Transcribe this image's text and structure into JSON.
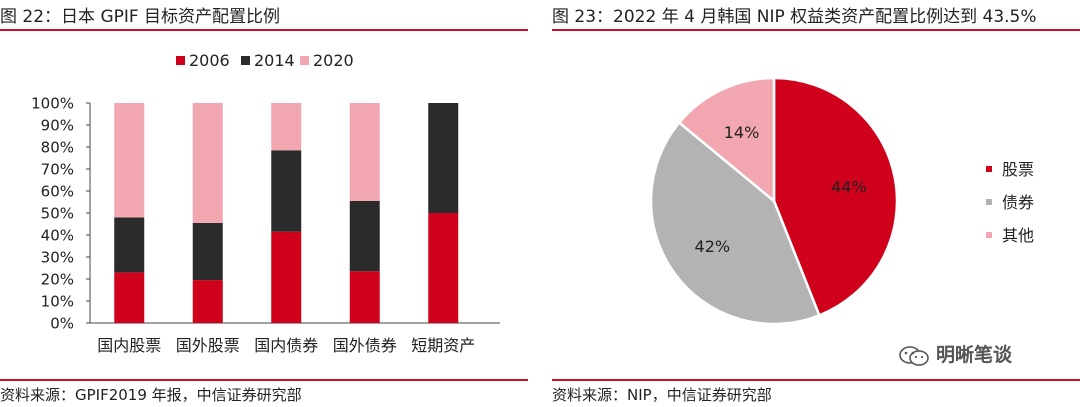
{
  "left": {
    "title": "图 22：日本 GPIF 目标资产配置比例",
    "source": "资料来源：GPIF2019 年报，中信证券研究部"
  },
  "right": {
    "title": "图 23：2022 年 4 月韩国 NIP 权益类资产配置比例达到 43.5%",
    "source": "资料来源：NIP，中信证券研究部"
  },
  "watermark": "明晰笔谈",
  "chart_data": [
    {
      "type": "bar",
      "stacked": true,
      "categories": [
        "国内股票",
        "国外股票",
        "国内债券",
        "国外债券",
        "短期资产"
      ],
      "series": [
        {
          "name": "2006",
          "color": "#d0021b",
          "values": [
            23,
            19.5,
            41.5,
            23.5,
            50
          ]
        },
        {
          "name": "2014",
          "color": "#2b2b2b",
          "values": [
            25,
            26,
            37,
            32,
            50
          ]
        },
        {
          "name": "2020",
          "color": "#f2a7b0",
          "values": [
            52,
            54.5,
            21.5,
            44.5,
            0
          ]
        }
      ],
      "ylim": [
        0,
        100
      ],
      "yticks": [
        "0%",
        "10%",
        "20%",
        "30%",
        "40%",
        "50%",
        "60%",
        "70%",
        "80%",
        "90%",
        "100%"
      ],
      "legend_position": "top"
    },
    {
      "type": "pie",
      "labels": [
        "股票",
        "债券",
        "其他"
      ],
      "values": [
        44,
        42,
        14
      ],
      "value_labels": [
        "44%",
        "42%",
        "14%"
      ],
      "colors": [
        "#d0021b",
        "#b3b3b3",
        "#f2a7b0"
      ],
      "legend_position": "right"
    }
  ]
}
